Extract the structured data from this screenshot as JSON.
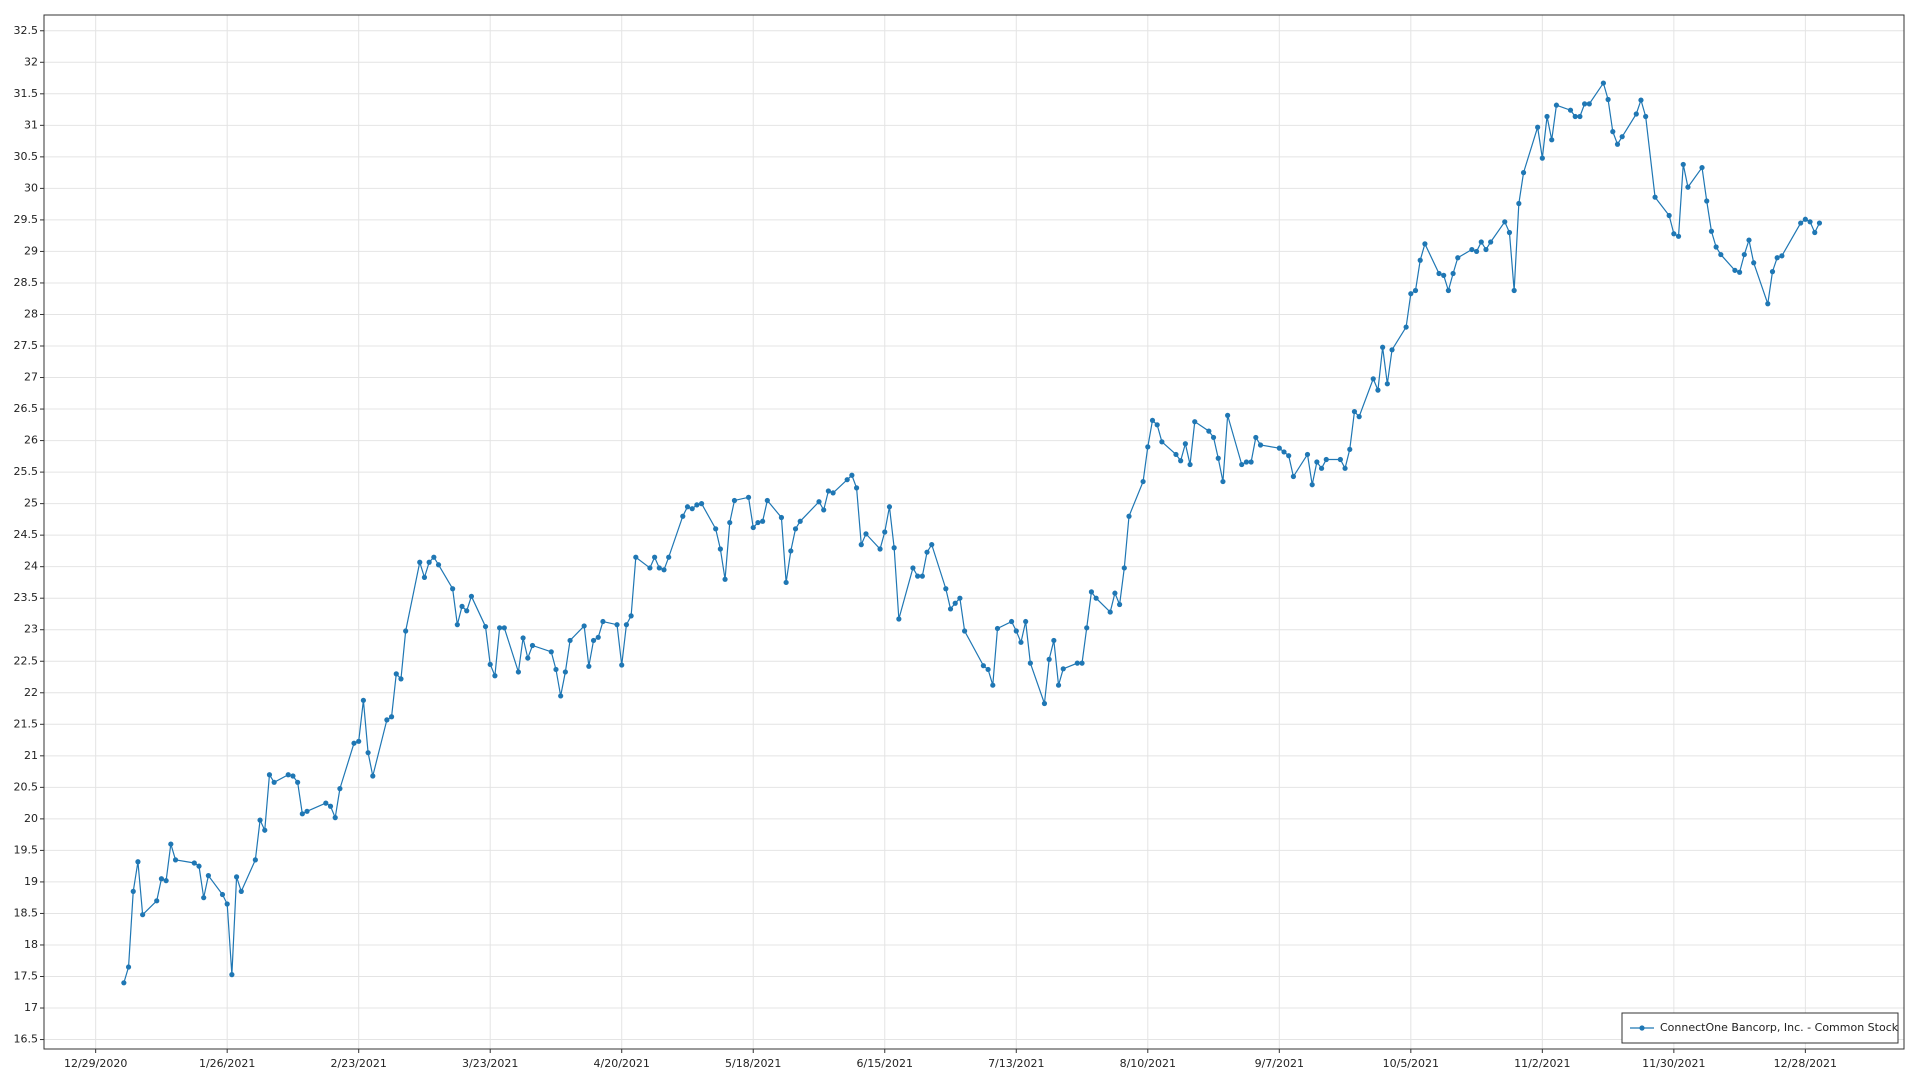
{
  "chart_data": {
    "type": "line",
    "x": [
      "1/4/2021",
      "1/5/2021",
      "1/6/2021",
      "1/7/2021",
      "1/8/2021",
      "1/11/2021",
      "1/12/2021",
      "1/13/2021",
      "1/14/2021",
      "1/15/2021",
      "1/19/2021",
      "1/20/2021",
      "1/21/2021",
      "1/22/2021",
      "1/25/2021",
      "1/26/2021",
      "1/27/2021",
      "1/28/2021",
      "1/29/2021",
      "2/1/2021",
      "2/2/2021",
      "2/3/2021",
      "2/4/2021",
      "2/5/2021",
      "2/8/2021",
      "2/9/2021",
      "2/10/2021",
      "2/11/2021",
      "2/12/2021",
      "2/16/2021",
      "2/17/2021",
      "2/18/2021",
      "2/19/2021",
      "2/22/2021",
      "2/23/2021",
      "2/24/2021",
      "2/25/2021",
      "2/26/2021",
      "3/1/2021",
      "3/2/2021",
      "3/3/2021",
      "3/4/2021",
      "3/5/2021",
      "3/8/2021",
      "3/9/2021",
      "3/10/2021",
      "3/11/2021",
      "3/12/2021",
      "3/15/2021",
      "3/16/2021",
      "3/17/2021",
      "3/18/2021",
      "3/19/2021",
      "3/22/2021",
      "3/23/2021",
      "3/24/2021",
      "3/25/2021",
      "3/26/2021",
      "3/29/2021",
      "3/30/2021",
      "3/31/2021",
      "4/1/2021",
      "4/5/2021",
      "4/6/2021",
      "4/7/2021",
      "4/8/2021",
      "4/9/2021",
      "4/12/2021",
      "4/13/2021",
      "4/14/2021",
      "4/15/2021",
      "4/16/2021",
      "4/19/2021",
      "4/20/2021",
      "4/21/2021",
      "4/22/2021",
      "4/23/2021",
      "4/26/2021",
      "4/27/2021",
      "4/28/2021",
      "4/29/2021",
      "4/30/2021",
      "5/3/2021",
      "5/4/2021",
      "5/5/2021",
      "5/6/2021",
      "5/7/2021",
      "5/10/2021",
      "5/11/2021",
      "5/12/2021",
      "5/13/2021",
      "5/14/2021",
      "5/17/2021",
      "5/18/2021",
      "5/19/2021",
      "5/20/2021",
      "5/21/2021",
      "5/24/2021",
      "5/25/2021",
      "5/26/2021",
      "5/27/2021",
      "5/28/2021",
      "6/1/2021",
      "6/2/2021",
      "6/3/2021",
      "6/4/2021",
      "6/7/2021",
      "6/8/2021",
      "6/9/2021",
      "6/10/2021",
      "6/11/2021",
      "6/14/2021",
      "6/15/2021",
      "6/16/2021",
      "6/17/2021",
      "6/18/2021",
      "6/21/2021",
      "6/22/2021",
      "6/23/2021",
      "6/24/2021",
      "6/25/2021",
      "6/28/2021",
      "6/29/2021",
      "6/30/2021",
      "7/1/2021",
      "7/2/2021",
      "7/6/2021",
      "7/7/2021",
      "7/8/2021",
      "7/9/2021",
      "7/12/2021",
      "7/13/2021",
      "7/14/2021",
      "7/15/2021",
      "7/16/2021",
      "7/19/2021",
      "7/20/2021",
      "7/21/2021",
      "7/22/2021",
      "7/23/2021",
      "7/26/2021",
      "7/27/2021",
      "7/28/2021",
      "7/29/2021",
      "7/30/2021",
      "8/2/2021",
      "8/3/2021",
      "8/4/2021",
      "8/5/2021",
      "8/6/2021",
      "8/9/2021",
      "8/10/2021",
      "8/11/2021",
      "8/12/2021",
      "8/13/2021",
      "8/16/2021",
      "8/17/2021",
      "8/18/2021",
      "8/19/2021",
      "8/20/2021",
      "8/23/2021",
      "8/24/2021",
      "8/25/2021",
      "8/26/2021",
      "8/27/2021",
      "8/30/2021",
      "8/31/2021",
      "9/1/2021",
      "9/2/2021",
      "9/3/2021",
      "9/7/2021",
      "9/8/2021",
      "9/9/2021",
      "9/10/2021",
      "9/13/2021",
      "9/14/2021",
      "9/15/2021",
      "9/16/2021",
      "9/17/2021",
      "9/20/2021",
      "9/21/2021",
      "9/22/2021",
      "9/23/2021",
      "9/24/2021",
      "9/27/2021",
      "9/28/2021",
      "9/29/2021",
      "9/30/2021",
      "10/1/2021",
      "10/4/2021",
      "10/5/2021",
      "10/6/2021",
      "10/7/2021",
      "10/8/2021",
      "10/11/2021",
      "10/12/2021",
      "10/13/2021",
      "10/14/2021",
      "10/15/2021",
      "10/18/2021",
      "10/19/2021",
      "10/20/2021",
      "10/21/2021",
      "10/22/2021",
      "10/25/2021",
      "10/26/2021",
      "10/27/2021",
      "10/28/2021",
      "10/29/2021",
      "11/1/2021",
      "11/2/2021",
      "11/3/2021",
      "11/4/2021",
      "11/5/2021",
      "11/8/2021",
      "11/9/2021",
      "11/10/2021",
      "11/11/2021",
      "11/12/2021",
      "11/15/2021",
      "11/16/2021",
      "11/17/2021",
      "11/18/2021",
      "11/19/2021",
      "11/22/2021",
      "11/23/2021",
      "11/24/2021",
      "11/26/2021",
      "11/29/2021",
      "11/30/2021",
      "12/1/2021",
      "12/2/2021",
      "12/3/2021",
      "12/6/2021",
      "12/7/2021",
      "12/8/2021",
      "12/9/2021",
      "12/10/2021",
      "12/13/2021",
      "12/14/2021",
      "12/15/2021",
      "12/16/2021",
      "12/17/2021",
      "12/20/2021",
      "12/21/2021",
      "12/22/2021",
      "12/23/2021",
      "12/27/2021",
      "12/28/2021",
      "12/29/2021",
      "12/30/2021",
      "12/31/2021"
    ],
    "series": [
      {
        "name": "ConnectOne Bancorp, Inc. - Common Stock",
        "color": "#1f77b4",
        "values": [
          17.4,
          17.65,
          18.85,
          19.32,
          18.48,
          18.7,
          19.05,
          19.02,
          19.6,
          19.35,
          19.3,
          19.25,
          18.75,
          19.1,
          18.8,
          18.65,
          17.53,
          19.08,
          18.85,
          19.35,
          19.98,
          19.82,
          20.7,
          20.58,
          20.7,
          20.68,
          20.58,
          20.08,
          20.12,
          20.25,
          20.2,
          20.02,
          20.48,
          21.2,
          21.23,
          21.88,
          21.05,
          20.68,
          21.57,
          21.62,
          22.3,
          22.22,
          22.98,
          24.07,
          23.83,
          24.07,
          24.15,
          24.03,
          23.65,
          23.08,
          23.37,
          23.3,
          23.53,
          23.05,
          22.45,
          22.27,
          23.03,
          23.03,
          22.33,
          22.87,
          22.55,
          22.75,
          22.65,
          22.37,
          21.95,
          22.33,
          22.83,
          23.06,
          22.42,
          22.83,
          22.88,
          23.13,
          23.08,
          22.44,
          23.08,
          23.22,
          24.15,
          23.98,
          24.15,
          23.98,
          23.95,
          24.15,
          24.8,
          24.95,
          24.92,
          24.98,
          25.0,
          24.6,
          24.28,
          23.8,
          24.7,
          25.05,
          25.1,
          24.62,
          24.7,
          24.72,
          25.05,
          24.78,
          23.75,
          24.25,
          24.6,
          24.72,
          25.03,
          24.9,
          25.2,
          25.17,
          25.38,
          25.45,
          25.25,
          24.35,
          24.52,
          24.28,
          24.55,
          24.95,
          24.3,
          23.17,
          23.98,
          23.85,
          23.85,
          24.23,
          24.35,
          23.65,
          23.33,
          23.42,
          23.5,
          22.98,
          22.43,
          22.37,
          22.12,
          23.02,
          23.13,
          22.98,
          22.8,
          23.13,
          22.47,
          21.83,
          22.53,
          22.83,
          22.12,
          22.38,
          22.47,
          22.47,
          23.03,
          23.6,
          23.5,
          23.28,
          23.58,
          23.4,
          23.98,
          24.8,
          25.35,
          25.9,
          26.32,
          26.25,
          25.98,
          25.78,
          25.68,
          25.95,
          25.62,
          26.3,
          26.15,
          26.05,
          25.72,
          25.35,
          26.4,
          25.62,
          25.66,
          25.66,
          26.05,
          25.93,
          25.88,
          25.82,
          25.76,
          25.43,
          25.78,
          25.3,
          25.66,
          25.56,
          25.7,
          25.7,
          25.56,
          25.86,
          26.46,
          26.38,
          26.98,
          26.8,
          27.48,
          26.9,
          27.44,
          27.8,
          28.33,
          28.38,
          28.86,
          29.12,
          28.65,
          28.62,
          28.38,
          28.65,
          28.9,
          29.03,
          29.0,
          29.15,
          29.03,
          29.15,
          29.47,
          29.3,
          28.38,
          29.76,
          30.25,
          30.97,
          30.48,
          31.14,
          30.77,
          31.32,
          31.24,
          31.14,
          31.14,
          31.34,
          31.34,
          31.67,
          31.41,
          30.9,
          30.7,
          30.82,
          31.18,
          31.4,
          31.14,
          29.86,
          29.57,
          29.28,
          29.24,
          30.38,
          30.02,
          30.33,
          29.8,
          29.32,
          29.07,
          28.95,
          28.7,
          28.67,
          28.95,
          29.18,
          28.82,
          28.17,
          28.68,
          28.9,
          28.93,
          29.45,
          29.51,
          29.47,
          29.3,
          29.45
        ]
      }
    ],
    "xlim": [
      "12/18/2020",
      "1/18/2022"
    ],
    "xticks": [
      "12/29/2020",
      "1/26/2021",
      "2/23/2021",
      "3/23/2021",
      "4/20/2021",
      "5/18/2021",
      "6/15/2021",
      "7/13/2021",
      "8/10/2021",
      "9/7/2021",
      "10/5/2021",
      "11/2/2021",
      "11/30/2021",
      "12/28/2021"
    ],
    "ylim": [
      16.35,
      32.75
    ],
    "yticks": [
      16.5,
      17,
      17.5,
      18,
      18.5,
      19,
      19.5,
      20,
      20.5,
      21,
      21.5,
      22,
      22.5,
      23,
      23.5,
      24,
      24.5,
      25,
      25.5,
      26,
      26.5,
      27,
      27.5,
      28,
      28.5,
      29,
      29.5,
      30,
      30.5,
      31,
      31.5,
      32,
      32.5
    ],
    "grid": true,
    "legend": "bottom-right"
  }
}
